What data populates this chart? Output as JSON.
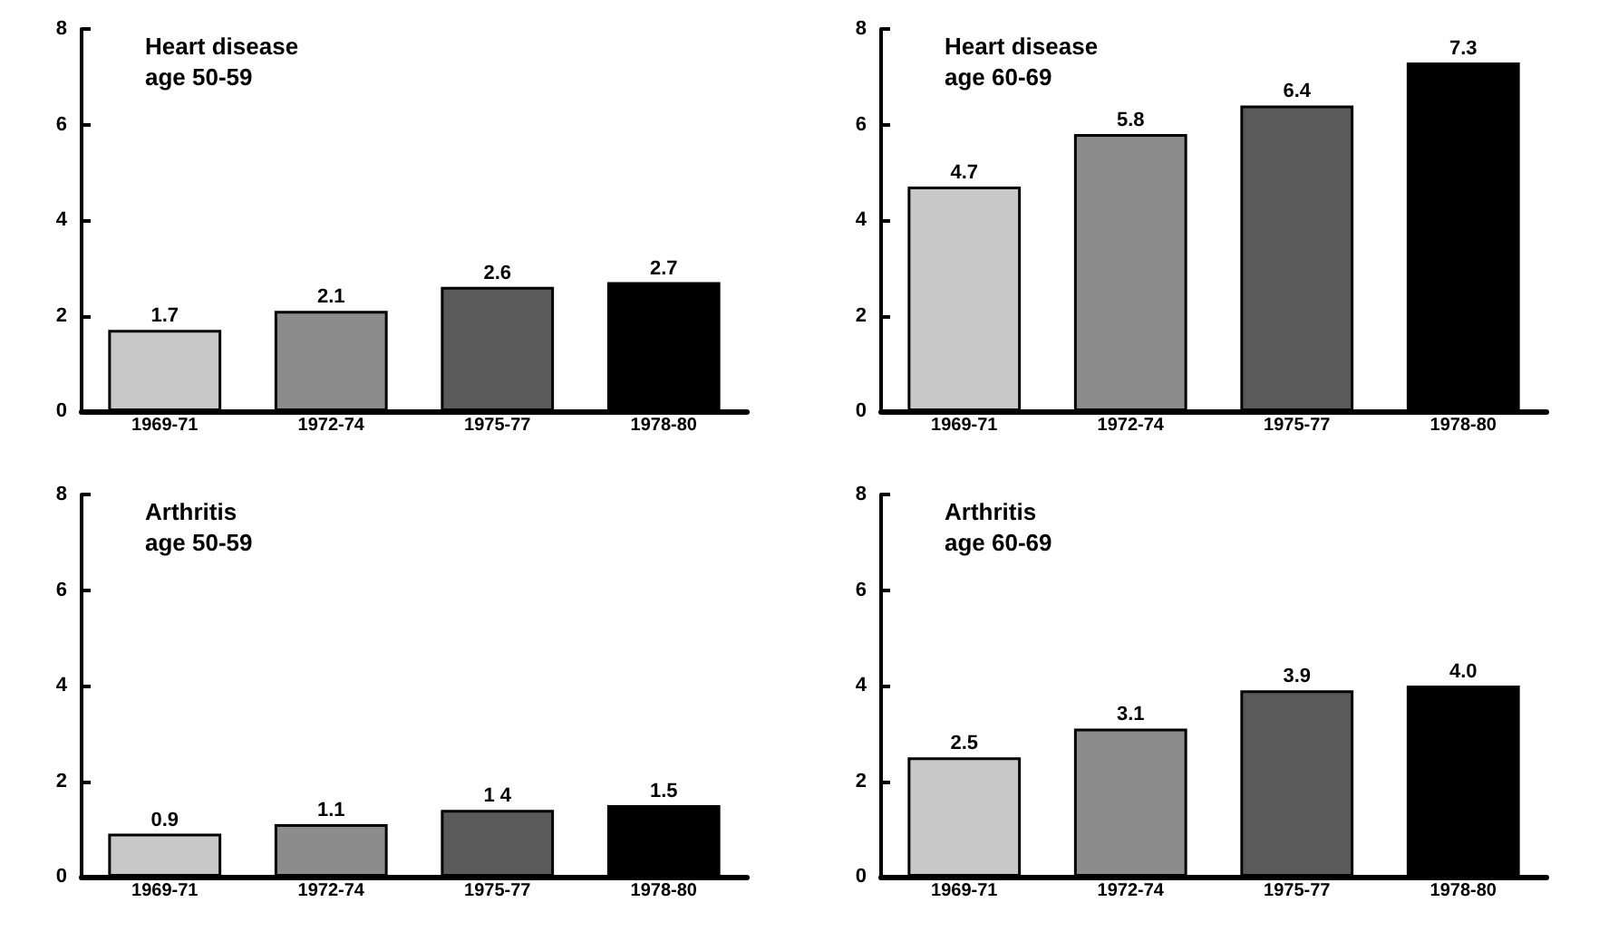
{
  "chart_data": [
    {
      "type": "bar",
      "title": "Heart disease",
      "subtitle": "age 50-59",
      "categories": [
        "1969-71",
        "1972-74",
        "1975-77",
        "1978-80"
      ],
      "values": [
        1.7,
        2.1,
        2.6,
        2.7
      ],
      "value_labels": [
        "1.7",
        "2.1",
        "2.6",
        "2.7"
      ],
      "colors": [
        "#c8c8c8",
        "#8c8c8c",
        "#5a5a5a",
        "#000000"
      ],
      "ylim": [
        0,
        8
      ],
      "yticks": [
        0,
        2,
        4,
        6,
        8
      ]
    },
    {
      "type": "bar",
      "title": "Heart disease",
      "subtitle": "age 60-69",
      "categories": [
        "1969-71",
        "1972-74",
        "1975-77",
        "1978-80"
      ],
      "values": [
        4.7,
        5.8,
        6.4,
        7.3
      ],
      "value_labels": [
        "4.7",
        "5.8",
        "6.4",
        "7.3"
      ],
      "colors": [
        "#c8c8c8",
        "#8c8c8c",
        "#5a5a5a",
        "#000000"
      ],
      "ylim": [
        0,
        8
      ],
      "yticks": [
        0,
        2,
        4,
        6,
        8
      ]
    },
    {
      "type": "bar",
      "title": "Arthritis",
      "subtitle": "age 50-59",
      "categories": [
        "1969-71",
        "1972-74",
        "1975-77",
        "1978-80"
      ],
      "values": [
        0.9,
        1.1,
        1.4,
        1.5
      ],
      "value_labels": [
        "0.9",
        "1.1",
        "1 4",
        "1.5"
      ],
      "colors": [
        "#c8c8c8",
        "#8c8c8c",
        "#5a5a5a",
        "#000000"
      ],
      "ylim": [
        0,
        8
      ],
      "yticks": [
        0,
        2,
        4,
        6,
        8
      ]
    },
    {
      "type": "bar",
      "title": "Arthritis",
      "subtitle": "age 60-69",
      "categories": [
        "1969-71",
        "1972-74",
        "1975-77",
        "1978-80"
      ],
      "values": [
        2.5,
        3.1,
        3.9,
        4.0
      ],
      "value_labels": [
        "2.5",
        "3.1",
        "3.9",
        "4.0"
      ],
      "colors": [
        "#c8c8c8",
        "#8c8c8c",
        "#5a5a5a",
        "#000000"
      ],
      "ylim": [
        0,
        8
      ],
      "yticks": [
        0,
        2,
        4,
        6,
        8
      ]
    }
  ]
}
